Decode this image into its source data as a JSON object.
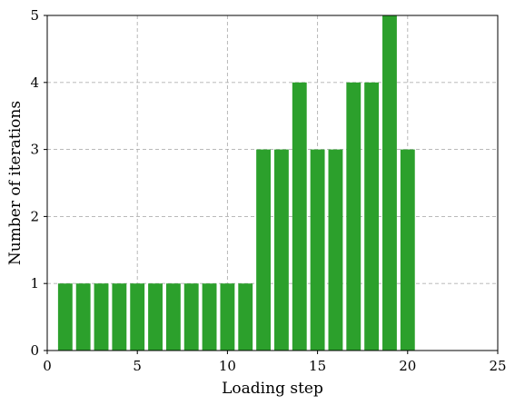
{
  "chart_data": {
    "type": "bar",
    "title": "",
    "xlabel": "Loading step",
    "ylabel": "Number of iterations",
    "xlim": [
      0,
      25
    ],
    "ylim": [
      0,
      5
    ],
    "xticks": [
      0,
      5,
      10,
      15,
      20,
      25
    ],
    "yticks": [
      0,
      1,
      2,
      3,
      4,
      5
    ],
    "x_tick_labels": [
      "0",
      "5",
      "10",
      "15",
      "20",
      "25"
    ],
    "y_tick_labels": [
      "0",
      "1",
      "2",
      "3",
      "4",
      "5"
    ],
    "grid": true,
    "bar_color": "#2ca02c",
    "x": [
      1,
      2,
      3,
      4,
      5,
      6,
      7,
      8,
      9,
      10,
      11,
      12,
      13,
      14,
      15,
      16,
      17,
      18,
      19,
      20
    ],
    "values": [
      1,
      1,
      1,
      1,
      1,
      1,
      1,
      1,
      1,
      1,
      1,
      3,
      3,
      4,
      3,
      3,
      4,
      4,
      5,
      3
    ]
  }
}
